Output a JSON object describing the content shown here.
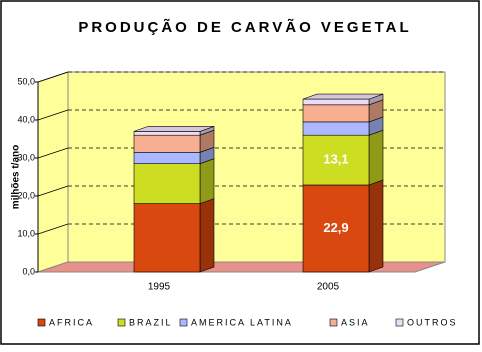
{
  "chart_data": {
    "type": "bar3d_stacked",
    "title": "PRODUÇÃO DE CARVÃO VEGETAL",
    "y_label": "milhões t/ano",
    "categories": [
      "1995",
      "2005"
    ],
    "series": [
      {
        "name": "AFRICA",
        "color": "#d9480f",
        "values": [
          18,
          22.9
        ],
        "value_labels": [
          null,
          "22,9"
        ]
      },
      {
        "name": "BRAZIL",
        "color": "#ccdd22",
        "values": [
          10.5,
          13.1
        ],
        "value_labels": [
          null,
          "13,1"
        ]
      },
      {
        "name": "AMERICA LATINA",
        "color": "#aab8ff",
        "values": [
          3,
          3.5
        ]
      },
      {
        "name": "ASIA",
        "color": "#f8ae90",
        "values": [
          4.5,
          4.5
        ]
      },
      {
        "name": "OUTROS",
        "color": "#eedcf4",
        "values": [
          1,
          1.5
        ]
      }
    ],
    "ylim": [
      0,
      50
    ],
    "yticks": [
      {
        "value": 0,
        "label": "0,0"
      },
      {
        "value": 10,
        "label": "10,0"
      },
      {
        "value": 20,
        "label": "20,0"
      },
      {
        "value": 30,
        "label": "30,0"
      },
      {
        "value": 40,
        "label": "40,0"
      },
      {
        "value": 50,
        "label": "50,0"
      }
    ],
    "grid": true
  }
}
